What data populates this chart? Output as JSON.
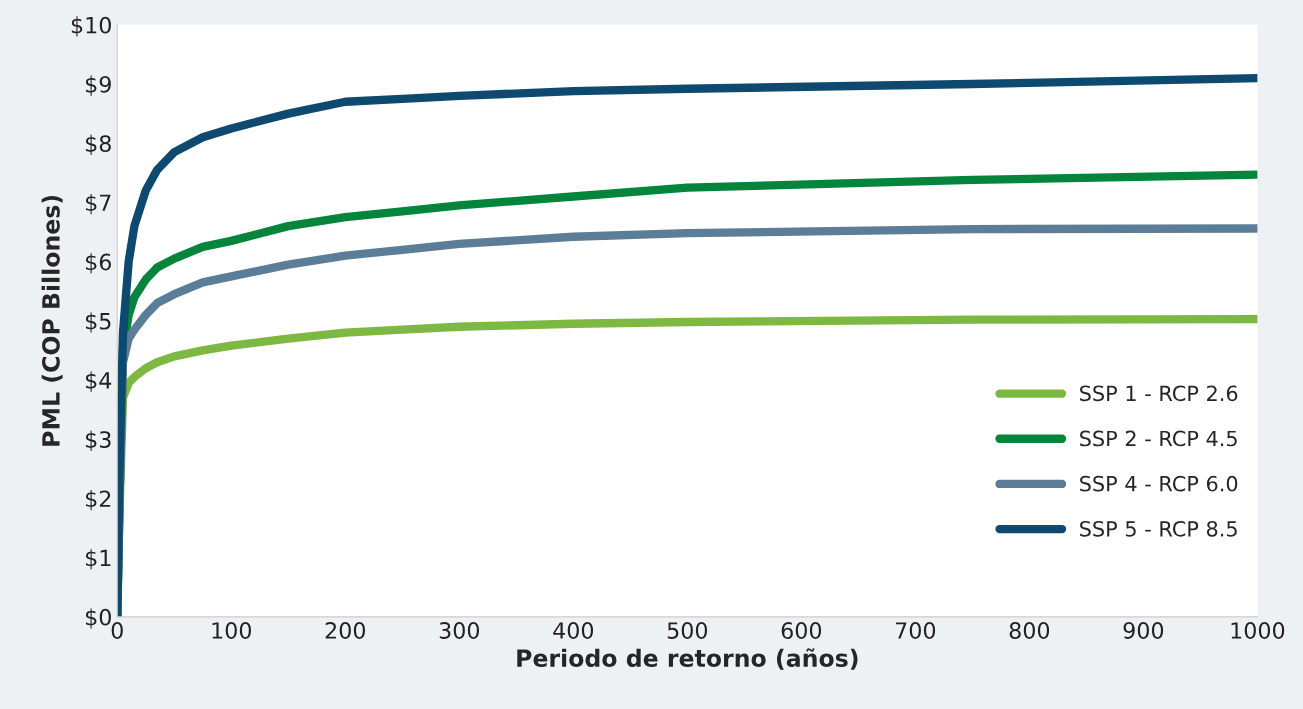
{
  "chart_data": {
    "type": "line",
    "xlabel": "Periodo de retorno (años)",
    "ylabel": "PML (COP Billones)",
    "x": [
      0,
      2,
      5,
      10,
      15,
      25,
      35,
      50,
      75,
      100,
      150,
      200,
      250,
      300,
      400,
      500,
      750,
      1000
    ],
    "series": [
      {
        "name": "SSP 1 - RCP 2.6",
        "color": "#7db843",
        "values": [
          0,
          1.8,
          3.7,
          3.95,
          4.05,
          4.2,
          4.3,
          4.4,
          4.5,
          4.58,
          4.7,
          4.8,
          4.85,
          4.9,
          4.95,
          4.98,
          5.02,
          5.03
        ]
      },
      {
        "name": "SSP 2 - RCP 4.5",
        "color": "#05843c",
        "values": [
          0,
          2.0,
          4.5,
          5.1,
          5.4,
          5.7,
          5.9,
          6.05,
          6.25,
          6.35,
          6.6,
          6.75,
          6.85,
          6.95,
          7.1,
          7.25,
          7.38,
          7.47
        ]
      },
      {
        "name": "SSP 4 - RCP 6.0",
        "color": "#5b7d97",
        "values": [
          0,
          2.0,
          4.3,
          4.7,
          4.85,
          5.1,
          5.3,
          5.45,
          5.65,
          5.75,
          5.95,
          6.1,
          6.2,
          6.3,
          6.42,
          6.48,
          6.55,
          6.56
        ]
      },
      {
        "name": "SSP 5 - RCP 8.5",
        "color": "#0e4a70",
        "values": [
          0,
          2.5,
          4.8,
          6.0,
          6.6,
          7.2,
          7.55,
          7.85,
          8.1,
          8.25,
          8.5,
          8.7,
          8.75,
          8.8,
          8.88,
          8.92,
          9.0,
          9.1
        ]
      }
    ],
    "xlim": [
      0,
      1000
    ],
    "xticks": [
      0,
      100,
      200,
      300,
      400,
      500,
      600,
      700,
      800,
      900,
      1000
    ],
    "ylim": [
      0,
      10
    ],
    "yticks": [
      {
        "value": 0,
        "label": "$0"
      },
      {
        "value": 1,
        "label": "$1"
      },
      {
        "value": 2,
        "label": "$2"
      },
      {
        "value": 3,
        "label": "$3"
      },
      {
        "value": 4,
        "label": "$4"
      },
      {
        "value": 5,
        "label": "$5"
      },
      {
        "value": 6,
        "label": "$6"
      },
      {
        "value": 7,
        "label": "$7"
      },
      {
        "value": 8,
        "label": "$8"
      },
      {
        "value": 9,
        "label": "$9"
      },
      {
        "value": 10,
        "label": "$10"
      }
    ],
    "grid": false,
    "legend": "right",
    "marker": "none",
    "line_style": "solid"
  }
}
